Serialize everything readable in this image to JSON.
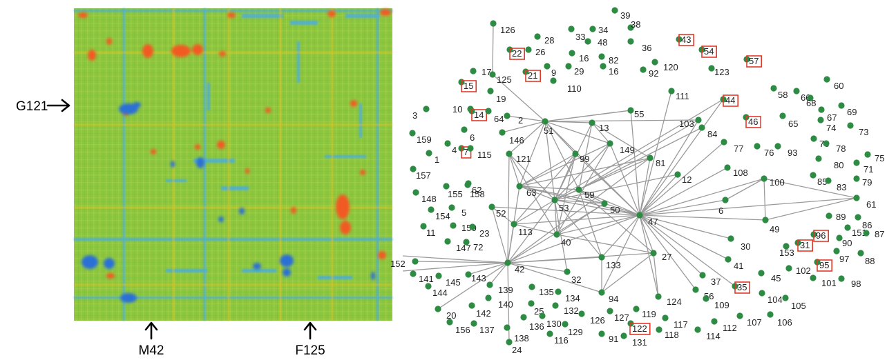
{
  "heatmap": {
    "row_marker": "G121",
    "column_markers": [
      "M42",
      "F125"
    ],
    "colors": {
      "background": "#8cc63f",
      "high": "#f15a24",
      "low": "#2b6fd6",
      "mid_high": "#f7c21b",
      "mid_low": "#3fa9f5"
    }
  },
  "network": {
    "node_color": "#2e8b43",
    "edge_color": "#9a9a9a",
    "highlight_color": "#e0392a",
    "nodes": [
      {
        "id": "39"
      },
      {
        "id": "38"
      },
      {
        "id": "126"
      },
      {
        "id": "28"
      },
      {
        "id": "33"
      },
      {
        "id": "34"
      },
      {
        "id": "48"
      },
      {
        "id": "36"
      },
      {
        "id": "43",
        "highlighted": true
      },
      {
        "id": "54",
        "highlighted": true
      },
      {
        "id": "57",
        "highlighted": true
      },
      {
        "id": "22",
        "highlighted": true
      },
      {
        "id": "26"
      },
      {
        "id": "16a",
        "label": "16"
      },
      {
        "id": "82"
      },
      {
        "id": "120"
      },
      {
        "id": "123"
      },
      {
        "id": "17"
      },
      {
        "id": "125"
      },
      {
        "id": "21",
        "highlighted": true
      },
      {
        "id": "9"
      },
      {
        "id": "29"
      },
      {
        "id": "16b",
        "label": "16"
      },
      {
        "id": "92"
      },
      {
        "id": "15",
        "highlighted": true
      },
      {
        "id": "110"
      },
      {
        "id": "111"
      },
      {
        "id": "58"
      },
      {
        "id": "66"
      },
      {
        "id": "68"
      },
      {
        "id": "60"
      },
      {
        "id": "19"
      },
      {
        "id": "10"
      },
      {
        "id": "3"
      },
      {
        "id": "55"
      },
      {
        "id": "44",
        "highlighted": true
      },
      {
        "id": "67"
      },
      {
        "id": "69"
      },
      {
        "id": "14",
        "highlighted": true
      },
      {
        "id": "64"
      },
      {
        "id": "2"
      },
      {
        "id": "51"
      },
      {
        "id": "13"
      },
      {
        "id": "103"
      },
      {
        "id": "84"
      },
      {
        "id": "46",
        "highlighted": true
      },
      {
        "id": "65"
      },
      {
        "id": "74"
      },
      {
        "id": "73"
      },
      {
        "id": "6a",
        "label": "6"
      },
      {
        "id": "159"
      },
      {
        "id": "146"
      },
      {
        "id": "149"
      },
      {
        "id": "77"
      },
      {
        "id": "76"
      },
      {
        "id": "93"
      },
      {
        "id": "70"
      },
      {
        "id": "78"
      },
      {
        "id": "75"
      },
      {
        "id": "4"
      },
      {
        "id": "1"
      },
      {
        "id": "7",
        "highlighted": true
      },
      {
        "id": "115"
      },
      {
        "id": "121"
      },
      {
        "id": "99"
      },
      {
        "id": "81"
      },
      {
        "id": "80"
      },
      {
        "id": "71"
      },
      {
        "id": "157"
      },
      {
        "id": "62"
      },
      {
        "id": "12"
      },
      {
        "id": "108"
      },
      {
        "id": "100"
      },
      {
        "id": "85"
      },
      {
        "id": "83"
      },
      {
        "id": "79"
      },
      {
        "id": "148"
      },
      {
        "id": "155"
      },
      {
        "id": "158"
      },
      {
        "id": "63"
      },
      {
        "id": "59"
      },
      {
        "id": "53"
      },
      {
        "id": "50"
      },
      {
        "id": "61"
      },
      {
        "id": "6b",
        "label": "6"
      },
      {
        "id": "52"
      },
      {
        "id": "47"
      },
      {
        "id": "154"
      },
      {
        "id": "5"
      },
      {
        "id": "89"
      },
      {
        "id": "86"
      },
      {
        "id": "11"
      },
      {
        "id": "150"
      },
      {
        "id": "23"
      },
      {
        "id": "113"
      },
      {
        "id": "49"
      },
      {
        "id": "96",
        "highlighted": true
      },
      {
        "id": "151"
      },
      {
        "id": "87"
      },
      {
        "id": "40"
      },
      {
        "id": "147"
      },
      {
        "id": "72"
      },
      {
        "id": "30"
      },
      {
        "id": "153"
      },
      {
        "id": "31",
        "highlighted": true
      },
      {
        "id": "90"
      },
      {
        "id": "97"
      },
      {
        "id": "88"
      },
      {
        "id": "152"
      },
      {
        "id": "42"
      },
      {
        "id": "133"
      },
      {
        "id": "27"
      },
      {
        "id": "41"
      },
      {
        "id": "95",
        "highlighted": true
      },
      {
        "id": "102"
      },
      {
        "id": "101"
      },
      {
        "id": "98"
      },
      {
        "id": "32"
      },
      {
        "id": "45"
      },
      {
        "id": "141"
      },
      {
        "id": "145"
      },
      {
        "id": "143"
      },
      {
        "id": "37"
      },
      {
        "id": "144"
      },
      {
        "id": "139"
      },
      {
        "id": "135"
      },
      {
        "id": "134"
      },
      {
        "id": "94"
      },
      {
        "id": "124"
      },
      {
        "id": "56"
      },
      {
        "id": "109"
      },
      {
        "id": "35",
        "highlighted": true
      },
      {
        "id": "104"
      },
      {
        "id": "105"
      },
      {
        "id": "140"
      },
      {
        "id": "25"
      },
      {
        "id": "132"
      },
      {
        "id": "127"
      },
      {
        "id": "119"
      },
      {
        "id": "20"
      },
      {
        "id": "142"
      },
      {
        "id": "130"
      },
      {
        "id": "126b",
        "label": "126"
      },
      {
        "id": "117"
      },
      {
        "id": "107"
      },
      {
        "id": "106"
      },
      {
        "id": "156"
      },
      {
        "id": "137"
      },
      {
        "id": "136"
      },
      {
        "id": "129"
      },
      {
        "id": "122",
        "highlighted": true
      },
      {
        "id": "118"
      },
      {
        "id": "114"
      },
      {
        "id": "112"
      },
      {
        "id": "138"
      },
      {
        "id": "116"
      },
      {
        "id": "91"
      },
      {
        "id": "131"
      },
      {
        "id": "24"
      }
    ],
    "edges": [
      [
        "126",
        "125"
      ],
      [
        "125",
        "51"
      ],
      [
        "51",
        "13"
      ],
      [
        "51",
        "121"
      ],
      [
        "51",
        "99"
      ],
      [
        "51",
        "53"
      ],
      [
        "51",
        "59"
      ],
      [
        "51",
        "63"
      ],
      [
        "51",
        "47"
      ],
      [
        "51",
        "149"
      ],
      [
        "51",
        "103"
      ],
      [
        "51",
        "55"
      ],
      [
        "51",
        "146"
      ],
      [
        "51",
        "2"
      ],
      [
        "13",
        "149"
      ],
      [
        "13",
        "59"
      ],
      [
        "13",
        "53"
      ],
      [
        "13",
        "81"
      ],
      [
        "55",
        "47"
      ],
      [
        "55",
        "51"
      ],
      [
        "103",
        "47"
      ],
      [
        "103",
        "59"
      ],
      [
        "111",
        "47"
      ],
      [
        "44",
        "47"
      ],
      [
        "44",
        "53"
      ],
      [
        "149",
        "63"
      ],
      [
        "149",
        "53"
      ],
      [
        "149",
        "47"
      ],
      [
        "149",
        "40"
      ],
      [
        "99",
        "53"
      ],
      [
        "99",
        "63"
      ],
      [
        "99",
        "47"
      ],
      [
        "99",
        "40"
      ],
      [
        "99",
        "113"
      ],
      [
        "121",
        "63"
      ],
      [
        "121",
        "53"
      ],
      [
        "121",
        "42"
      ],
      [
        "121",
        "40"
      ],
      [
        "81",
        "63"
      ],
      [
        "81",
        "53"
      ],
      [
        "81",
        "47"
      ],
      [
        "81",
        "42"
      ],
      [
        "12",
        "53"
      ],
      [
        "12",
        "47"
      ],
      [
        "108",
        "47"
      ],
      [
        "77",
        "47"
      ],
      [
        "84",
        "59"
      ],
      [
        "100",
        "47"
      ],
      [
        "100",
        "61"
      ],
      [
        "100",
        "49"
      ],
      [
        "100",
        "6b"
      ],
      [
        "6b",
        "47"
      ],
      [
        "61",
        "47"
      ],
      [
        "49",
        "47"
      ],
      [
        "61",
        "49"
      ],
      [
        "63",
        "59"
      ],
      [
        "63",
        "53"
      ],
      [
        "63",
        "50"
      ],
      [
        "63",
        "47"
      ],
      [
        "63",
        "42"
      ],
      [
        "59",
        "47"
      ],
      [
        "59",
        "53"
      ],
      [
        "59",
        "50"
      ],
      [
        "59",
        "27"
      ],
      [
        "59",
        "133"
      ],
      [
        "53",
        "47"
      ],
      [
        "53",
        "50"
      ],
      [
        "53",
        "40"
      ],
      [
        "53",
        "113"
      ],
      [
        "53",
        "42"
      ],
      [
        "53",
        "32"
      ],
      [
        "53",
        "133"
      ],
      [
        "50",
        "47"
      ],
      [
        "50",
        "40"
      ],
      [
        "50",
        "42"
      ],
      [
        "47",
        "40"
      ],
      [
        "47",
        "133"
      ],
      [
        "47",
        "27"
      ],
      [
        "47",
        "30"
      ],
      [
        "47",
        "41"
      ],
      [
        "47",
        "37"
      ],
      [
        "47",
        "56"
      ],
      [
        "47",
        "124"
      ],
      [
        "47",
        "94"
      ],
      [
        "47",
        "42"
      ],
      [
        "47",
        "35"
      ],
      [
        "47",
        "113"
      ],
      [
        "52",
        "47"
      ],
      [
        "52",
        "42"
      ],
      [
        "52",
        "113"
      ],
      [
        "113",
        "40"
      ],
      [
        "113",
        "42"
      ],
      [
        "42",
        "152"
      ],
      [
        "42",
        "143"
      ],
      [
        "42",
        "20"
      ],
      [
        "42",
        "139"
      ],
      [
        "42",
        "24"
      ],
      [
        "42",
        "94"
      ],
      [
        "42",
        "32"
      ],
      [
        "42",
        "133"
      ],
      [
        "42",
        "27"
      ],
      [
        "40",
        "27"
      ],
      [
        "94",
        "27"
      ],
      [
        "27",
        "124"
      ],
      [
        "133",
        "94"
      ]
    ]
  }
}
